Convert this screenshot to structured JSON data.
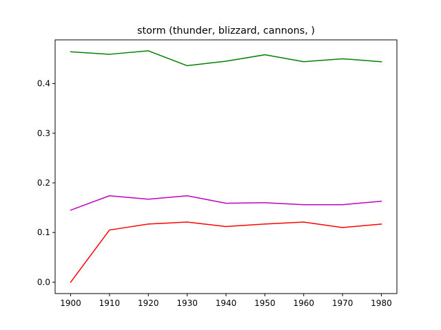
{
  "chart_data": {
    "type": "line",
    "title": "storm (thunder, blizzard, cannons, )",
    "xlabel": "",
    "ylabel": "",
    "x": [
      1900,
      1910,
      1920,
      1930,
      1940,
      1950,
      1960,
      1970,
      1980
    ],
    "x_ticks": [
      "1900",
      "1910",
      "1920",
      "1930",
      "1940",
      "1950",
      "1960",
      "1970",
      "1980"
    ],
    "y_ticks": [
      "0.0",
      "0.1",
      "0.2",
      "0.3",
      "0.4"
    ],
    "xlim": [
      1896,
      1984
    ],
    "ylim": [
      -0.023,
      0.488
    ],
    "grid": false,
    "series": [
      {
        "color": "#008000",
        "values": [
          0.464,
          0.459,
          0.466,
          0.436,
          0.445,
          0.458,
          0.444,
          0.45,
          0.444
        ]
      },
      {
        "color": "#bf00bf",
        "values": [
          0.145,
          0.174,
          0.167,
          0.174,
          0.159,
          0.16,
          0.156,
          0.156,
          0.163
        ]
      },
      {
        "color": "#ff0000",
        "values": [
          0.0,
          0.105,
          0.117,
          0.121,
          0.112,
          0.117,
          0.121,
          0.11,
          0.117
        ]
      }
    ]
  }
}
